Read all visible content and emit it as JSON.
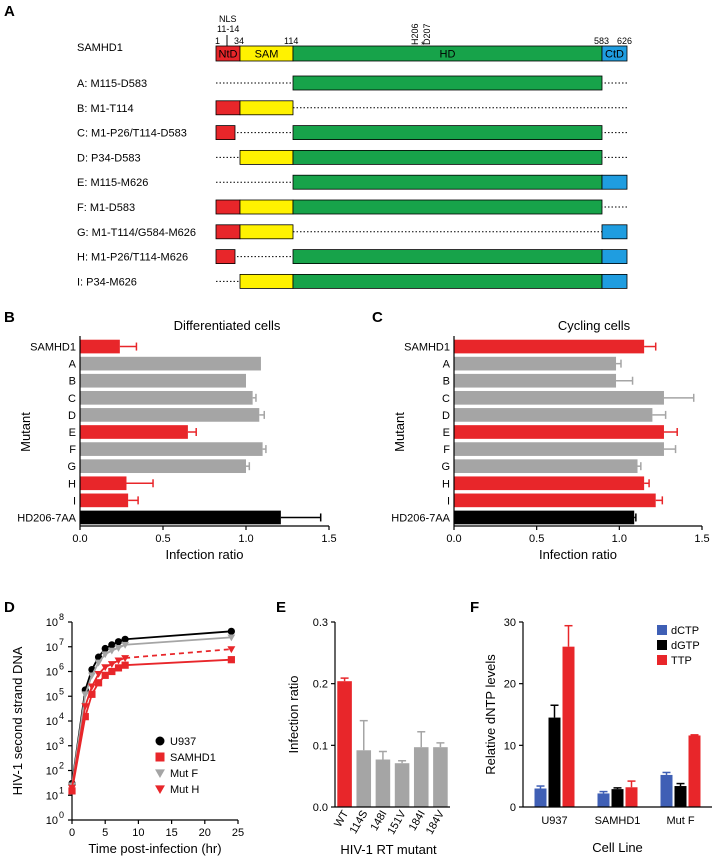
{
  "colors": {
    "red": "#e8262a",
    "gray": "#a5a5a5",
    "black": "#000000",
    "yellow": "#fff200",
    "green": "#17a34a",
    "blue": "#1f9de0",
    "dctp": "#3f5fb5"
  },
  "panels": {
    "A": "A",
    "B": "B",
    "C": "C",
    "D": "D",
    "E": "E",
    "F": "F"
  },
  "schematic": {
    "protein_name": "SAMHD1",
    "nls_label": "NLS",
    "nls_range": "11-14",
    "h206_label": "H206",
    "d207_label": "D207",
    "positions": {
      "p1": "1",
      "p34": "34",
      "p114": "114",
      "p583": "583",
      "p626": "626"
    },
    "domain_labels": {
      "ntd": "NtD",
      "sam": "SAM",
      "hd": "HD",
      "ctd": "CtD"
    },
    "constructs": [
      {
        "label": "A: M115-D583",
        "segments": [
          "hd"
        ]
      },
      {
        "label": "B: M1-T114",
        "segments": [
          "ntd",
          "sam"
        ]
      },
      {
        "label": "C: M1-P26/T114-D583",
        "segments": [
          "ntd_short",
          "hd"
        ]
      },
      {
        "label": "D: P34-D583",
        "segments": [
          "sam",
          "hd"
        ]
      },
      {
        "label": "E: M115-M626",
        "segments": [
          "hd",
          "ctd"
        ]
      },
      {
        "label": "F: M1-D583",
        "segments": [
          "ntd",
          "sam",
          "hd"
        ]
      },
      {
        "label": "G: M1-T114/G584-M626",
        "segments": [
          "ntd",
          "sam",
          "ctd"
        ]
      },
      {
        "label": "H: M1-P26/T114-M626",
        "segments": [
          "ntd_short",
          "hd",
          "ctd"
        ]
      },
      {
        "label": "I: P34-M626",
        "segments": [
          "sam",
          "hd",
          "ctd"
        ]
      }
    ]
  },
  "chart_data": [
    {
      "id": "B",
      "type": "bar",
      "orientation": "horizontal",
      "title": "Differentiated cells",
      "xlabel": "Infection ratio",
      "ylabel": "Mutant",
      "xlim": [
        0,
        1.5
      ],
      "xticks": [
        "0.0",
        "0.5",
        "1.0",
        "1.5"
      ],
      "categories": [
        "SAMHD1",
        "A",
        "B",
        "C",
        "D",
        "E",
        "F",
        "G",
        "H",
        "I",
        "HD206-7AA"
      ],
      "values": [
        0.24,
        1.09,
        1.0,
        1.04,
        1.08,
        0.65,
        1.1,
        1.0,
        0.28,
        0.29,
        1.21
      ],
      "errors": [
        0.1,
        0.0,
        0.0,
        0.02,
        0.03,
        0.05,
        0.02,
        0.02,
        0.16,
        0.06,
        0.24
      ],
      "bar_colors": [
        "red",
        "gray",
        "gray",
        "gray",
        "gray",
        "red",
        "gray",
        "gray",
        "red",
        "red",
        "black"
      ]
    },
    {
      "id": "C",
      "type": "bar",
      "orientation": "horizontal",
      "title": "Cycling cells",
      "xlabel": "Infection ratio",
      "ylabel": "Mutant",
      "xlim": [
        0,
        1.5
      ],
      "xticks": [
        "0.0",
        "0.5",
        "1.0",
        "1.5"
      ],
      "categories": [
        "SAMHD1",
        "A",
        "B",
        "C",
        "D",
        "E",
        "F",
        "G",
        "H",
        "I",
        "HD206-7AA"
      ],
      "values": [
        1.15,
        0.98,
        0.98,
        1.27,
        1.2,
        1.27,
        1.27,
        1.11,
        1.15,
        1.22,
        1.09
      ],
      "errors": [
        0.07,
        0.03,
        0.1,
        0.18,
        0.08,
        0.08,
        0.07,
        0.02,
        0.03,
        0.04,
        0.01
      ],
      "bar_colors": [
        "red",
        "gray",
        "gray",
        "gray",
        "gray",
        "red",
        "gray",
        "gray",
        "red",
        "red",
        "black"
      ]
    },
    {
      "id": "D",
      "type": "line",
      "xlabel": "Time post-infection (hr)",
      "ylabel": "HIV-1 second strand DNA",
      "x_scale": "linear",
      "y_scale": "log",
      "xlim": [
        0,
        25
      ],
      "xticks": [
        "0",
        "5",
        "10",
        "15",
        "20",
        "25"
      ],
      "ylim": [
        1,
        100000000
      ],
      "yticks": [
        {
          "base": "10",
          "exp": "0"
        },
        {
          "base": "10",
          "exp": "1"
        },
        {
          "base": "10",
          "exp": "2"
        },
        {
          "base": "10",
          "exp": "3"
        },
        {
          "base": "10",
          "exp": "4"
        },
        {
          "base": "10",
          "exp": "5"
        },
        {
          "base": "10",
          "exp": "6"
        },
        {
          "base": "10",
          "exp": "7"
        },
        {
          "base": "10",
          "exp": "8"
        }
      ],
      "legend_position": "bottom-right",
      "series": [
        {
          "name": "U937",
          "color": "black",
          "marker": "circle",
          "dashed_last": false,
          "x": [
            0,
            2,
            3,
            4,
            5,
            6,
            7,
            8,
            24
          ],
          "y": [
            30,
            180000,
            1200000,
            3800000,
            8500000,
            12000000,
            16000000,
            20000000,
            42000000
          ]
        },
        {
          "name": "SAMHD1",
          "color": "red",
          "marker": "square",
          "dashed_last": false,
          "x": [
            0,
            2,
            3,
            4,
            5,
            6,
            7,
            8,
            24
          ],
          "y": [
            15,
            15000,
            120000,
            350000,
            700000,
            1000000,
            1400000,
            1800000,
            3000000
          ]
        },
        {
          "name": "Mut F",
          "color": "gray",
          "marker": "triangle-down",
          "dashed_last": false,
          "x": [
            0,
            2,
            3,
            4,
            5,
            6,
            7,
            8,
            24
          ],
          "y": [
            25,
            120000,
            700000,
            2300000,
            5000000,
            7000000,
            9000000,
            12000000,
            24000000
          ]
        },
        {
          "name": "Mut H",
          "color": "red",
          "marker": "triangle-down",
          "dashed_last": true,
          "x": [
            0,
            2,
            3,
            4,
            5,
            6,
            7,
            8,
            24
          ],
          "y": [
            20,
            40000,
            250000,
            800000,
            1500000,
            2000000,
            2800000,
            3500000,
            8000000
          ]
        }
      ]
    },
    {
      "id": "E",
      "type": "bar",
      "orientation": "vertical",
      "xlabel": "HIV-1 RT mutant",
      "ylabel": "Infection ratio",
      "ylim": [
        0,
        0.3
      ],
      "yticks": [
        "0.0",
        "0.1",
        "0.2",
        "0.3"
      ],
      "categories": [
        "WT",
        "114S",
        "148I",
        "151V",
        "184I",
        "184V"
      ],
      "values": [
        0.204,
        0.092,
        0.077,
        0.071,
        0.097,
        0.097
      ],
      "errors": [
        0.005,
        0.048,
        0.013,
        0.004,
        0.025,
        0.007
      ],
      "bar_colors": [
        "red",
        "gray",
        "gray",
        "gray",
        "gray",
        "gray"
      ]
    },
    {
      "id": "F",
      "type": "bar",
      "orientation": "vertical",
      "xlabel": "Cell Line",
      "ylabel": "Relative dNTP levels",
      "ylim": [
        0,
        30
      ],
      "yticks": [
        "0",
        "10",
        "20",
        "30"
      ],
      "categories": [
        "U937",
        "SAMHD1",
        "Mut F"
      ],
      "legend_position": "top-right",
      "series": [
        {
          "name": "dCTP",
          "color": "dctp",
          "values": [
            3.0,
            2.2,
            5.2
          ],
          "errors": [
            0.4,
            0.3,
            0.4
          ]
        },
        {
          "name": "dGTP",
          "color": "black",
          "values": [
            14.5,
            2.9,
            3.4
          ],
          "errors": [
            2.0,
            0.2,
            0.4
          ]
        },
        {
          "name": "TTP",
          "color": "red",
          "values": [
            26.0,
            3.2,
            11.6
          ],
          "errors": [
            3.4,
            1.0,
            0.1
          ]
        }
      ]
    }
  ]
}
